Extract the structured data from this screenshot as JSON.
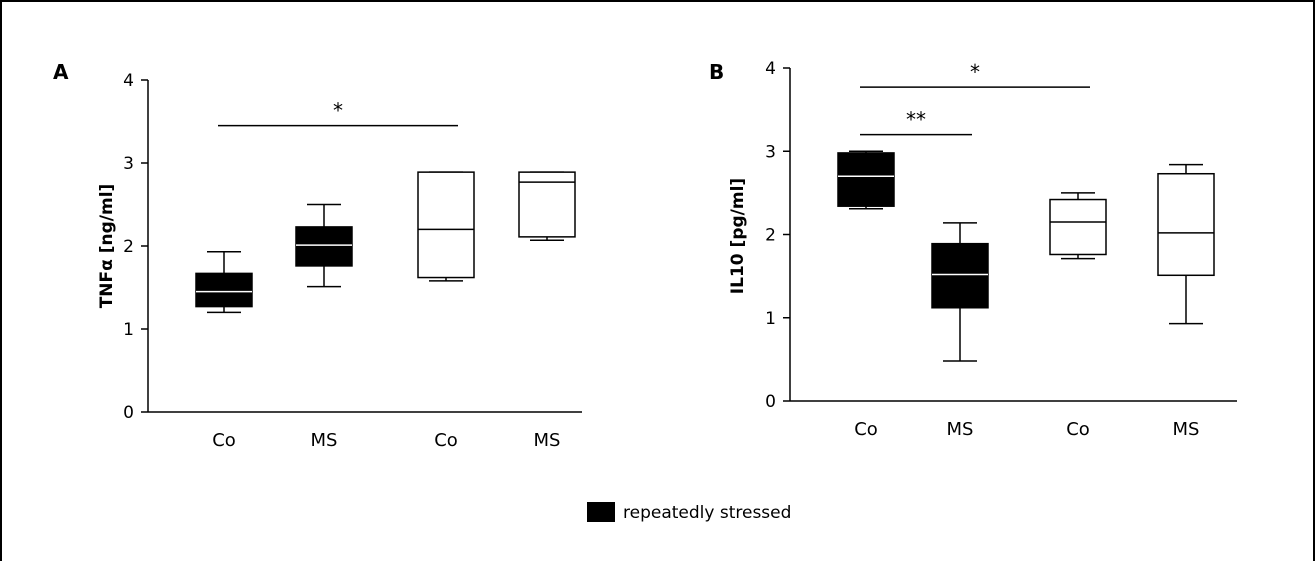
{
  "chart_data": [
    {
      "panel": "A",
      "type": "box",
      "ylabel": "TNFα [ng/ml]",
      "ylim": [
        0,
        4
      ],
      "yticks": [
        0,
        1,
        2,
        3,
        4
      ],
      "categories": [
        "Co",
        "MS",
        "Co",
        "MS"
      ],
      "groups": [
        {
          "category": "Co",
          "filled": true,
          "min": 1.2,
          "q1": 1.27,
          "median": 1.45,
          "q3": 1.67,
          "max": 1.93
        },
        {
          "category": "MS",
          "filled": true,
          "min": 1.51,
          "q1": 1.76,
          "median": 2.01,
          "q3": 2.23,
          "max": 2.5
        },
        {
          "category": "Co",
          "filled": false,
          "min": 1.58,
          "q1": 1.62,
          "median": 2.2,
          "q3": 2.89,
          "max": 2.89
        },
        {
          "category": "MS",
          "filled": false,
          "min": 2.07,
          "q1": 2.11,
          "median": 2.77,
          "q3": 2.89,
          "max": 2.89
        }
      ],
      "significance": [
        {
          "from": 0,
          "to": 2,
          "label": "*",
          "y": 3.45
        }
      ]
    },
    {
      "panel": "B",
      "type": "box",
      "ylabel": "IL10 [pg/ml]",
      "ylim": [
        0,
        4
      ],
      "yticks": [
        0,
        1,
        2,
        3,
        4
      ],
      "categories": [
        "Co",
        "MS",
        "Co",
        "MS"
      ],
      "groups": [
        {
          "category": "Co",
          "filled": true,
          "min": 2.31,
          "q1": 2.34,
          "median": 2.7,
          "q3": 2.98,
          "max": 3.0
        },
        {
          "category": "MS",
          "filled": true,
          "min": 0.48,
          "q1": 1.12,
          "median": 1.52,
          "q3": 1.89,
          "max": 2.14
        },
        {
          "category": "Co",
          "filled": false,
          "min": 1.71,
          "q1": 1.76,
          "median": 2.15,
          "q3": 2.42,
          "max": 2.5
        },
        {
          "category": "MS",
          "filled": false,
          "min": 0.93,
          "q1": 1.51,
          "median": 2.02,
          "q3": 2.73,
          "max": 2.84
        }
      ],
      "significance": [
        {
          "from": 0,
          "to": 2,
          "label": "*",
          "y": 3.77
        },
        {
          "from": 0,
          "to": 1,
          "label": "**",
          "y": 3.2
        }
      ]
    }
  ],
  "legend": {
    "label": "repeatedly stressed",
    "swatch_color": "#000000"
  },
  "colors": {
    "filled_box": "#000000",
    "open_box": "#ffffff",
    "median_on_filled": "#ffffff",
    "stroke": "#000000"
  }
}
